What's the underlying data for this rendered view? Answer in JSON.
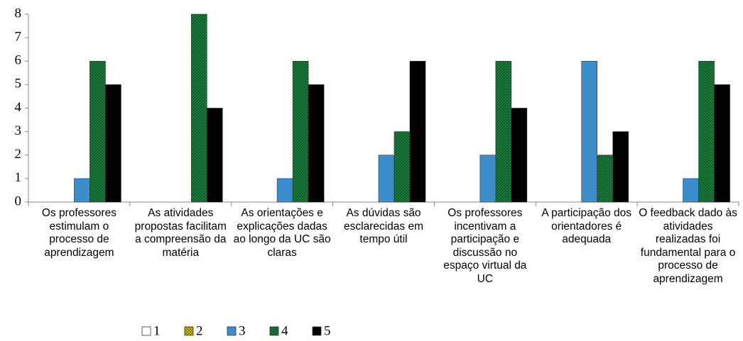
{
  "chart_data": {
    "type": "bar",
    "categories": [
      "Os professores estimulam o processo de aprendizagem",
      "As atividades propostas facilitam a compreensão da matéria",
      "As orientações e explicações dadas ao longo da UC são claras",
      "As dúvidas são esclarecidas em tempo útil",
      "Os professores incentivam a participação e discussão no espaço virtual da UC",
      "A participação dos orientadores é adequada",
      "O feedback dado às atividades realizadas foi fundamental para o processo de aprendizagem"
    ],
    "series": [
      {
        "name": "1",
        "color": "#ffffff",
        "values": [
          0,
          0,
          0,
          0,
          0,
          0,
          0
        ]
      },
      {
        "name": "2",
        "color": "#e6d800",
        "values": [
          0,
          0,
          0,
          0,
          0,
          0,
          0
        ]
      },
      {
        "name": "3",
        "color": "#3c8dcc",
        "values": [
          1,
          0,
          1,
          2,
          2,
          6,
          1
        ]
      },
      {
        "name": "4",
        "color": "#1f8a45",
        "values": [
          6,
          8,
          6,
          3,
          6,
          2,
          6
        ]
      },
      {
        "name": "5",
        "color": "#000000",
        "values": [
          5,
          4,
          5,
          6,
          4,
          3,
          5
        ]
      }
    ],
    "ylim": [
      0,
      8
    ],
    "yticks": [
      0,
      1,
      2,
      3,
      4,
      5,
      6,
      7,
      8
    ],
    "legend": "bottom"
  }
}
